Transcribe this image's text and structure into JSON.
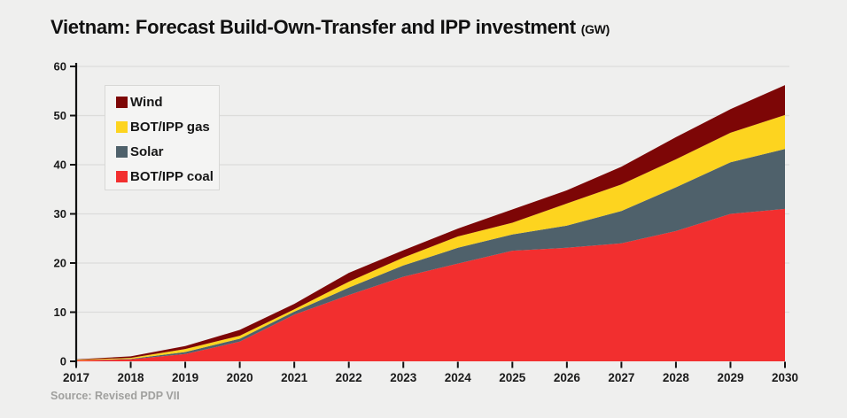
{
  "title": {
    "main": "Vietnam: Forecast Build-Own-Transfer and IPP investment",
    "unit": "(GW)"
  },
  "source": "Source: Revised PDP VII",
  "colors": {
    "background": "#efefee",
    "grid": "#dcdcda",
    "axis": "#111111",
    "tick_label": "#1a1a1a",
    "legend_bg": "#f4f4f3",
    "legend_border": "#d8d8d6",
    "source_text": "#a0a09e"
  },
  "chart_data": {
    "type": "area",
    "stacked": true,
    "title": "Vietnam: Forecast Build-Own-Transfer and IPP investment (GW)",
    "xlabel": "",
    "ylabel": "GW",
    "x": [
      2017,
      2018,
      2019,
      2020,
      2021,
      2022,
      2023,
      2024,
      2025,
      2026,
      2027,
      2028,
      2029,
      2030
    ],
    "series": [
      {
        "name": "BOT/IPP coal",
        "color": "#f22f2f",
        "values": [
          0.2,
          0.4,
          1.5,
          4.0,
          9.5,
          13.5,
          17.2,
          19.9,
          22.5,
          23.1,
          24.0,
          26.5,
          30.0,
          31.0
        ]
      },
      {
        "name": "Solar",
        "color": "#4f616b",
        "values": [
          0.0,
          0.1,
          0.4,
          0.6,
          0.6,
          1.5,
          2.3,
          3.2,
          3.3,
          4.5,
          6.6,
          8.9,
          10.5,
          12.2
        ]
      },
      {
        "name": "BOT/IPP gas",
        "color": "#fdd41f",
        "values": [
          0.1,
          0.2,
          0.6,
          0.6,
          0.5,
          1.2,
          1.6,
          2.3,
          2.4,
          4.5,
          5.4,
          5.7,
          6.0,
          6.9
        ]
      },
      {
        "name": "Wind",
        "color": "#7d0606",
        "values": [
          0.1,
          0.3,
          0.6,
          1.2,
          1.1,
          1.8,
          1.5,
          1.6,
          2.7,
          2.7,
          3.6,
          4.5,
          4.8,
          6.1
        ]
      }
    ],
    "legend_entries": [
      "Wind",
      "BOT/IPP gas",
      "Solar",
      "BOT/IPP coal"
    ],
    "legend_position": "top-left-inside",
    "ylim": [
      0,
      60
    ],
    "yticks": [
      0,
      10,
      20,
      30,
      40,
      50,
      60
    ],
    "grid": "horizontal"
  }
}
